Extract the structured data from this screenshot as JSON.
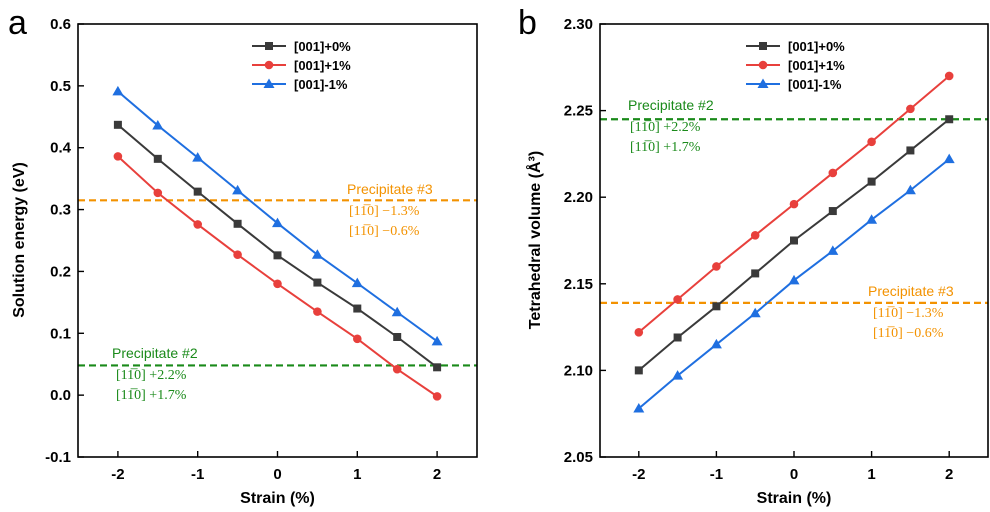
{
  "colors": {
    "series_black": "#3a3a3a",
    "series_red": "#e8403c",
    "series_blue": "#1f6fe0",
    "hline_orange": "#f39200",
    "hline_green": "#1a8a1a",
    "axis": "#000000"
  },
  "chart_data": [
    {
      "panel": "a",
      "type": "line",
      "xlabel": "Strain (%)",
      "ylabel": "Solution energy (eV)",
      "xlim": [
        -2.5,
        2.5
      ],
      "ylim": [
        -0.1,
        0.6
      ],
      "xticks": [
        -2,
        -1,
        0,
        1,
        2
      ],
      "yticks": [
        -0.1,
        0.0,
        0.1,
        0.2,
        0.3,
        0.4,
        0.5,
        0.6
      ],
      "ytick_labels": [
        "-0.1",
        "0.0",
        "0.1",
        "0.2",
        "0.3",
        "0.4",
        "0.5",
        "0.6"
      ],
      "x": [
        -2,
        -1.5,
        -1,
        -0.5,
        0,
        0.5,
        1,
        1.5,
        2
      ],
      "series": [
        {
          "name": "[001]+0%",
          "marker": "square",
          "color": "#3a3a3a",
          "values": [
            0.437,
            0.382,
            0.329,
            0.277,
            0.226,
            0.182,
            0.14,
            0.094,
            0.045
          ]
        },
        {
          "name": "[001]+1%",
          "marker": "circle",
          "color": "#e8403c",
          "values": [
            0.386,
            0.327,
            0.276,
            0.227,
            0.18,
            0.135,
            0.091,
            0.042,
            -0.002
          ]
        },
        {
          "name": "[001]-1%",
          "marker": "triangle",
          "color": "#1f6fe0",
          "values": [
            0.491,
            0.436,
            0.384,
            0.331,
            0.278,
            0.227,
            0.181,
            0.134,
            0.087
          ]
        }
      ],
      "legend_position": "top-right",
      "hlines": [
        {
          "y": 0.315,
          "color": "#f39200",
          "title": "Precipitate  #3",
          "lines": [
            "[11̅0] −1.3%",
            "[11̅0] −0.6%"
          ]
        },
        {
          "y": 0.048,
          "color": "#1a8a1a",
          "title": "Precipitate  #2",
          "lines": [
            "[11̅0] +2.2%",
            "[11̅0] +1.7%"
          ]
        }
      ]
    },
    {
      "panel": "b",
      "type": "line",
      "xlabel": "Strain (%)",
      "ylabel": "Tetrahedral volume (Å³)",
      "xlim": [
        -2.5,
        2.5
      ],
      "ylim": [
        2.05,
        2.3
      ],
      "xticks": [
        -2,
        -1,
        0,
        1,
        2
      ],
      "yticks": [
        2.05,
        2.1,
        2.15,
        2.2,
        2.25,
        2.3
      ],
      "ytick_labels": [
        "2.05",
        "2.10",
        "2.15",
        "2.20",
        "2.25",
        "2.30"
      ],
      "x": [
        -2,
        -1.5,
        -1,
        -0.5,
        0,
        0.5,
        1,
        1.5,
        2
      ],
      "series": [
        {
          "name": "[001]+0%",
          "marker": "square",
          "color": "#3a3a3a",
          "values": [
            2.1,
            2.119,
            2.137,
            2.156,
            2.175,
            2.192,
            2.209,
            2.227,
            2.245
          ]
        },
        {
          "name": "[001]+1%",
          "marker": "circle",
          "color": "#e8403c",
          "values": [
            2.122,
            2.141,
            2.16,
            2.178,
            2.196,
            2.214,
            2.232,
            2.251,
            2.27
          ]
        },
        {
          "name": "[001]-1%",
          "marker": "triangle",
          "color": "#1f6fe0",
          "values": [
            2.078,
            2.097,
            2.115,
            2.133,
            2.152,
            2.169,
            2.187,
            2.204,
            2.222
          ]
        }
      ],
      "legend_position": "top-right",
      "hlines": [
        {
          "y": 2.245,
          "color": "#1a8a1a",
          "title": "Precipitate  #2",
          "lines": [
            "[11̅0] +2.2%",
            "[11̅0] +1.7%"
          ]
        },
        {
          "y": 2.139,
          "color": "#f39200",
          "title": "Precipitate  #3",
          "lines": [
            "[11̅0] −1.3%",
            "[11̅0] −0.6%"
          ]
        }
      ]
    }
  ]
}
